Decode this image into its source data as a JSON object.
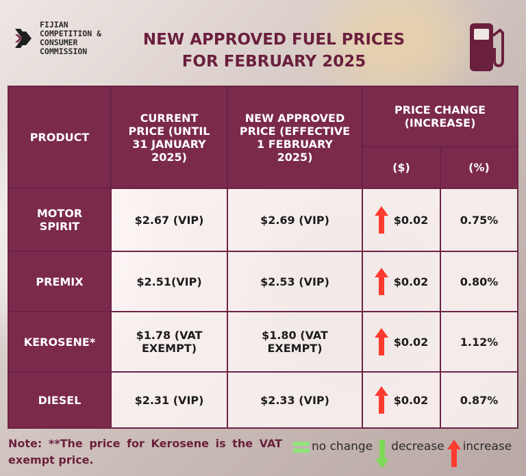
{
  "logo": {
    "lines": [
      "FIJIAN",
      "COMPETITION &",
      "CONSUMER",
      "COMMISSION"
    ]
  },
  "title": {
    "line1": "NEW APPROVED FUEL PRICES",
    "line2": "FOR FEBRUARY 2025"
  },
  "icon": "fuel-pump-icon",
  "colors": {
    "maroon": "#7b2a4c",
    "title": "#6a1f3d",
    "arrow_red": "#ff3b2f",
    "arrow_green": "#7ed957",
    "eq_green": "#8ee57a"
  },
  "table": {
    "headers": {
      "product": "PRODUCT",
      "current": "CURRENT PRICE (UNTIL 31 JANUARY 2025)",
      "new": "NEW APPROVED PRICE (EFFECTIVE 1 FEBRUARY 2025)",
      "change": "PRICE CHANGE (INCREASE)",
      "dollar": "($)",
      "percent": "(%)"
    },
    "rows": [
      {
        "product": "MOTOR SPIRIT",
        "current": "$2.67 (VIP)",
        "new": "$2.69 (VIP)",
        "change": "$0.02",
        "percent": "0.75%",
        "direction": "increase"
      },
      {
        "product": "PREMIX",
        "current": "$2.51(VIP)",
        "new": "$2.53 (VIP)",
        "change": "$0.02",
        "percent": "0.80%",
        "direction": "increase"
      },
      {
        "product": "KEROSENE*",
        "current": "$1.78 (VAT EXEMPT)",
        "new": "$1.80 (VAT EXEMPT)",
        "change": "$0.02",
        "percent": "1.12%",
        "direction": "increase"
      },
      {
        "product": "DIESEL",
        "current": "$2.31 (VIP)",
        "new": "$2.33 (VIP)",
        "change": "$0.02",
        "percent": "0.87%",
        "direction": "increase"
      }
    ]
  },
  "note": "Note: **The price for Kerosene is the VAT exempt price.",
  "legend": {
    "no_change": "no change",
    "decrease": "decrease",
    "increase": "increase"
  }
}
